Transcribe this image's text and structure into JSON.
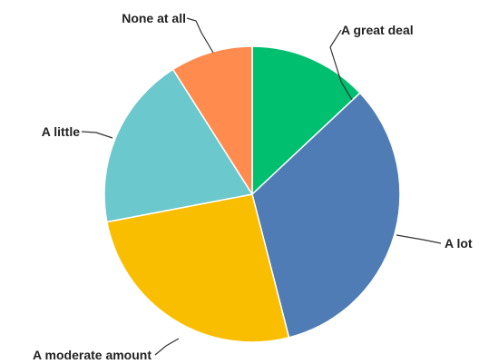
{
  "chart_data": {
    "type": "pie",
    "title": "",
    "slices": [
      {
        "label": "A great deal",
        "value": 13,
        "color": "#00BF6F"
      },
      {
        "label": "A lot",
        "value": 33,
        "color": "#507CB6"
      },
      {
        "label": "A moderate amount",
        "value": 26,
        "color": "#F9BE00"
      },
      {
        "label": "A little",
        "value": 19,
        "color": "#6BC8CD"
      },
      {
        "label": "None at all",
        "value": 9,
        "color": "#FF8B4F"
      }
    ]
  }
}
